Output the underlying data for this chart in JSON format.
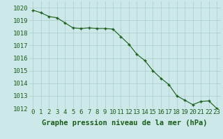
{
  "hours": [
    0,
    1,
    2,
    3,
    4,
    5,
    6,
    7,
    8,
    9,
    10,
    11,
    12,
    13,
    14,
    15,
    16,
    17,
    18,
    19,
    20,
    21,
    22,
    23
  ],
  "pressure": [
    1019.8,
    1019.6,
    1019.3,
    1019.2,
    1018.8,
    1018.4,
    1018.35,
    1018.4,
    1018.35,
    1018.35,
    1018.3,
    1017.7,
    1017.1,
    1016.3,
    1015.8,
    1015.0,
    1014.4,
    1013.9,
    1013.0,
    1012.65,
    1012.3,
    1012.55,
    1012.6,
    1012.0
  ],
  "ylim": [
    1012,
    1020.5
  ],
  "yticks": [
    1012,
    1013,
    1014,
    1015,
    1016,
    1017,
    1018,
    1019,
    1020
  ],
  "xticks": [
    0,
    1,
    2,
    3,
    4,
    5,
    6,
    7,
    8,
    9,
    10,
    11,
    12,
    13,
    14,
    15,
    16,
    17,
    18,
    19,
    20,
    21,
    22,
    23
  ],
  "line_color": "#1a5c1a",
  "marker_color": "#1a5c1a",
  "bg_color": "#cce8e8",
  "grid_color": "#aacccc",
  "xlabel": "Graphe pression niveau de la mer (hPa)",
  "xlabel_color": "#1a5c1a",
  "tick_label_color": "#1a5c1a",
  "tick_label_fontsize": 6.5,
  "xlabel_fontsize": 7.5
}
